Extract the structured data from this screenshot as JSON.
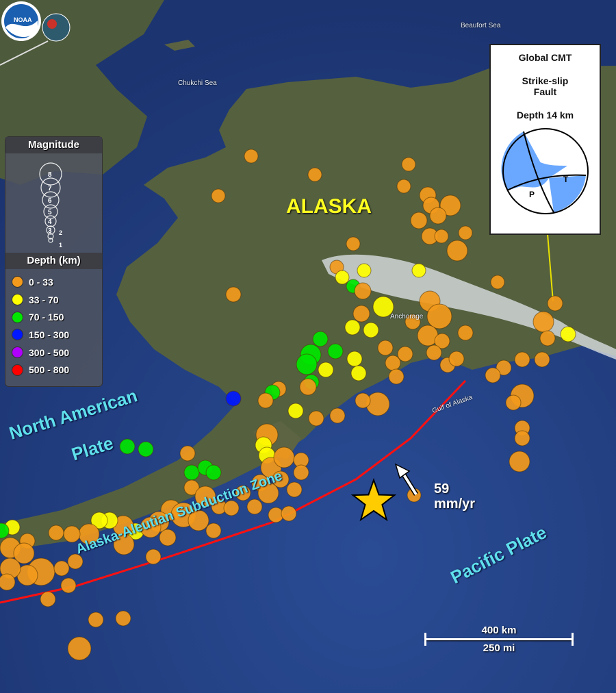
{
  "logo": {
    "text": "NOAA"
  },
  "seas": {
    "beaufort": "Beaufort Sea",
    "chukchi": "Chukchi Sea",
    "gulf": "Gulf of Alaska"
  },
  "places": {
    "alaska": "ALASKA",
    "anchorage": "Anchorage"
  },
  "plates": {
    "north_american_line1": "North American",
    "north_american_line2": "Plate",
    "pacific": "Pacific Plate"
  },
  "subduction_zone": "Alaska-Aleutian Subduction Zone",
  "motion": {
    "value": "59",
    "unit": "mm/yr"
  },
  "legend": {
    "magnitude_title": "Magnitude",
    "magnitudes": [
      "8",
      "7",
      "6",
      "5",
      "4",
      "3",
      "2",
      "1"
    ],
    "depth_title": "Depth (km)",
    "depths": [
      {
        "label": "0 - 33",
        "color": "#f39a1c"
      },
      {
        "label": "33 - 70",
        "color": "#ffff00"
      },
      {
        "label": "70 - 150",
        "color": "#00e600"
      },
      {
        "label": "150 - 300",
        "color": "#0018ff"
      },
      {
        "label": "300 - 500",
        "color": "#b000ff"
      },
      {
        "label": "500 - 800",
        "color": "#ff0000"
      }
    ]
  },
  "cmt": {
    "title": "Global CMT",
    "fault_line1": "Strike-slip",
    "fault_line2": "Fault",
    "depth": "Depth 14 km",
    "p": "P",
    "t": "T",
    "fill_color": "#6aa8ff"
  },
  "scale": {
    "km": "400 km",
    "mi": "250 mi"
  },
  "colors": {
    "subduction": "#ff1010",
    "epicenter": "#ffcc00",
    "leader": "#e8e000"
  }
}
